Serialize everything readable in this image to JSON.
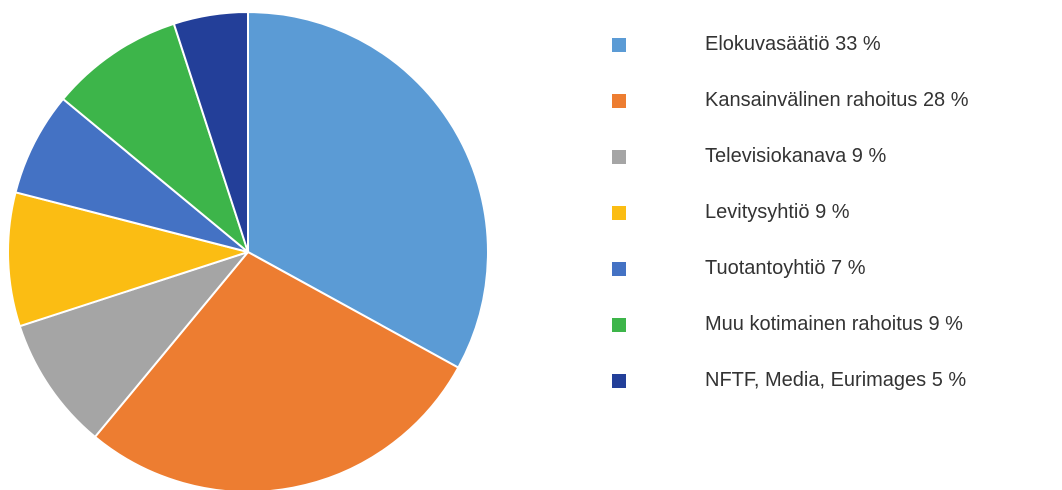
{
  "chart_data": {
    "type": "pie",
    "categories": [
      "Elokuvasäätiö",
      "Kansainvälinen rahoitus",
      "Televisiokanava",
      "Levitysyhtiö",
      "Tuotantoyhtiö",
      "Muu kotimainen rahoitus",
      "NFTF, Media, Eurimages"
    ],
    "values": [
      33,
      28,
      9,
      9,
      7,
      9,
      5
    ],
    "value_labels": [
      "33 %",
      "28 %",
      "9 %",
      "9 %",
      "7 %",
      "9 %",
      "5 %"
    ],
    "colors": [
      "#5b9bd5",
      "#ed7d31",
      "#a5a5a5",
      "#fbbd13",
      "#4472c4",
      "#3db54a",
      "#233f99"
    ],
    "legend": "right"
  }
}
